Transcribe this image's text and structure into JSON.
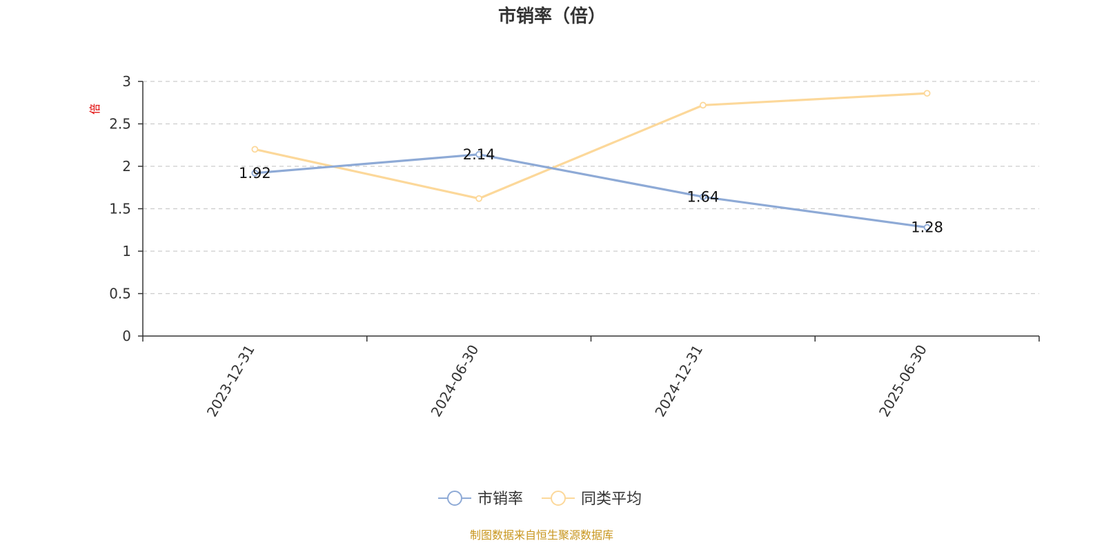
{
  "chart_data": {
    "type": "line",
    "title": "市销率（倍）",
    "y_unit": "倍",
    "categories": [
      "2023-12-31",
      "2024-06-30",
      "2024-12-31",
      "2025-06-30"
    ],
    "ylim": [
      0,
      3
    ],
    "y_ticks": [
      "0",
      "0.5",
      "1",
      "1.5",
      "2",
      "2.5",
      "3"
    ],
    "grid": true,
    "legend_position": "bottom-center",
    "series": [
      {
        "name": "市销率",
        "values": [
          1.92,
          2.14,
          1.64,
          1.28
        ],
        "data_labels": [
          "1.92",
          "2.14",
          "1.64",
          "1.28"
        ],
        "color": "#8eaad6"
      },
      {
        "name": "同类平均",
        "values": [
          2.2,
          1.62,
          2.72,
          2.86
        ],
        "color": "#fcd89a"
      }
    ],
    "source": "制图数据来自恒生聚源数据库"
  }
}
